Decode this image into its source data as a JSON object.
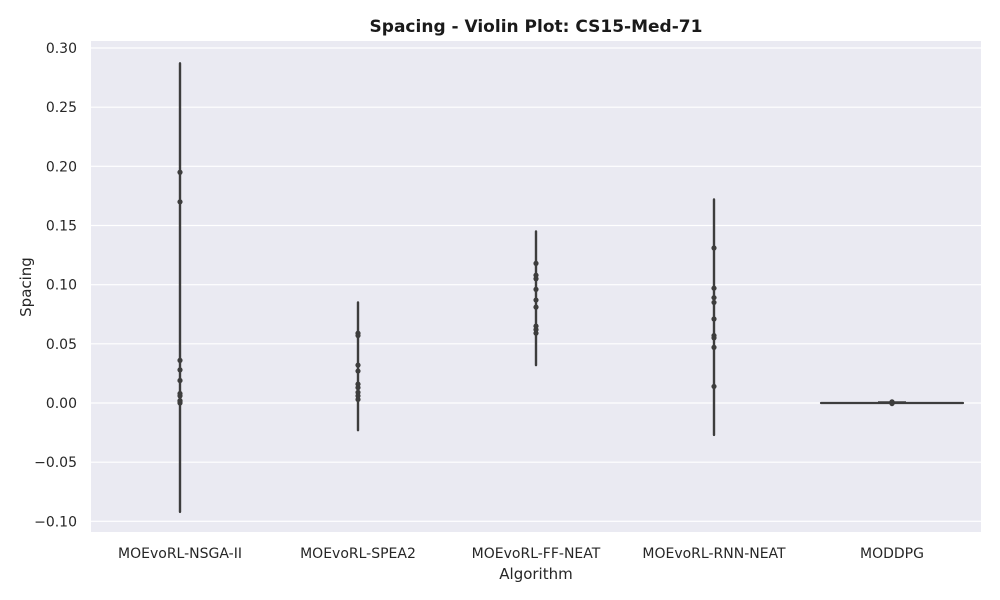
{
  "chart_data": {
    "type": "violin",
    "title": "Spacing - Violin Plot: CS15-Med-71",
    "xlabel": "Algorithm",
    "ylabel": "Spacing",
    "ylim": [
      -0.11,
      0.31
    ],
    "yticks": [
      -0.1,
      -0.05,
      0.0,
      0.05,
      0.1,
      0.15,
      0.2,
      0.25,
      0.3
    ],
    "ytick_labels": [
      "−0.10",
      "−0.05",
      "0.00",
      "0.05",
      "0.10",
      "0.15",
      "0.20",
      "0.25",
      "0.30"
    ],
    "grid": true,
    "categories": [
      "MOEvoRL-NSGA-II",
      "MOEvoRL-SPEA2",
      "MOEvoRL-FF-NEAT",
      "MOEvoRL-RNN-NEAT",
      "MODDPG"
    ],
    "series": [
      {
        "category": "MOEvoRL-NSGA-II",
        "range": [
          -0.092,
          0.287
        ],
        "points": [
          0.195,
          0.17,
          0.036,
          0.028,
          0.019,
          0.008,
          0.006,
          0.002,
          0.001,
          0.0
        ]
      },
      {
        "category": "MOEvoRL-SPEA2",
        "range": [
          -0.023,
          0.085
        ],
        "points": [
          0.059,
          0.057,
          0.032,
          0.027,
          0.016,
          0.013,
          0.009,
          0.006,
          0.003
        ]
      },
      {
        "category": "MOEvoRL-FF-NEAT",
        "range": [
          0.032,
          0.145
        ],
        "points": [
          0.118,
          0.108,
          0.105,
          0.096,
          0.087,
          0.081,
          0.065,
          0.062,
          0.059
        ]
      },
      {
        "category": "MOEvoRL-RNN-NEAT",
        "range": [
          -0.027,
          0.172
        ],
        "points": [
          0.131,
          0.097,
          0.089,
          0.085,
          0.071,
          0.057,
          0.055,
          0.047,
          0.014
        ]
      },
      {
        "category": "MODDPG",
        "range": [
          0.0,
          0.0
        ],
        "points": [
          0.001,
          0.0005,
          0.0,
          -0.0005
        ],
        "flat": true
      }
    ],
    "colors": {
      "plot_background": "#eaeaf2",
      "grid": "#ffffff",
      "violin_line": "#3d3d3d",
      "points": "#3d3d3d"
    }
  }
}
